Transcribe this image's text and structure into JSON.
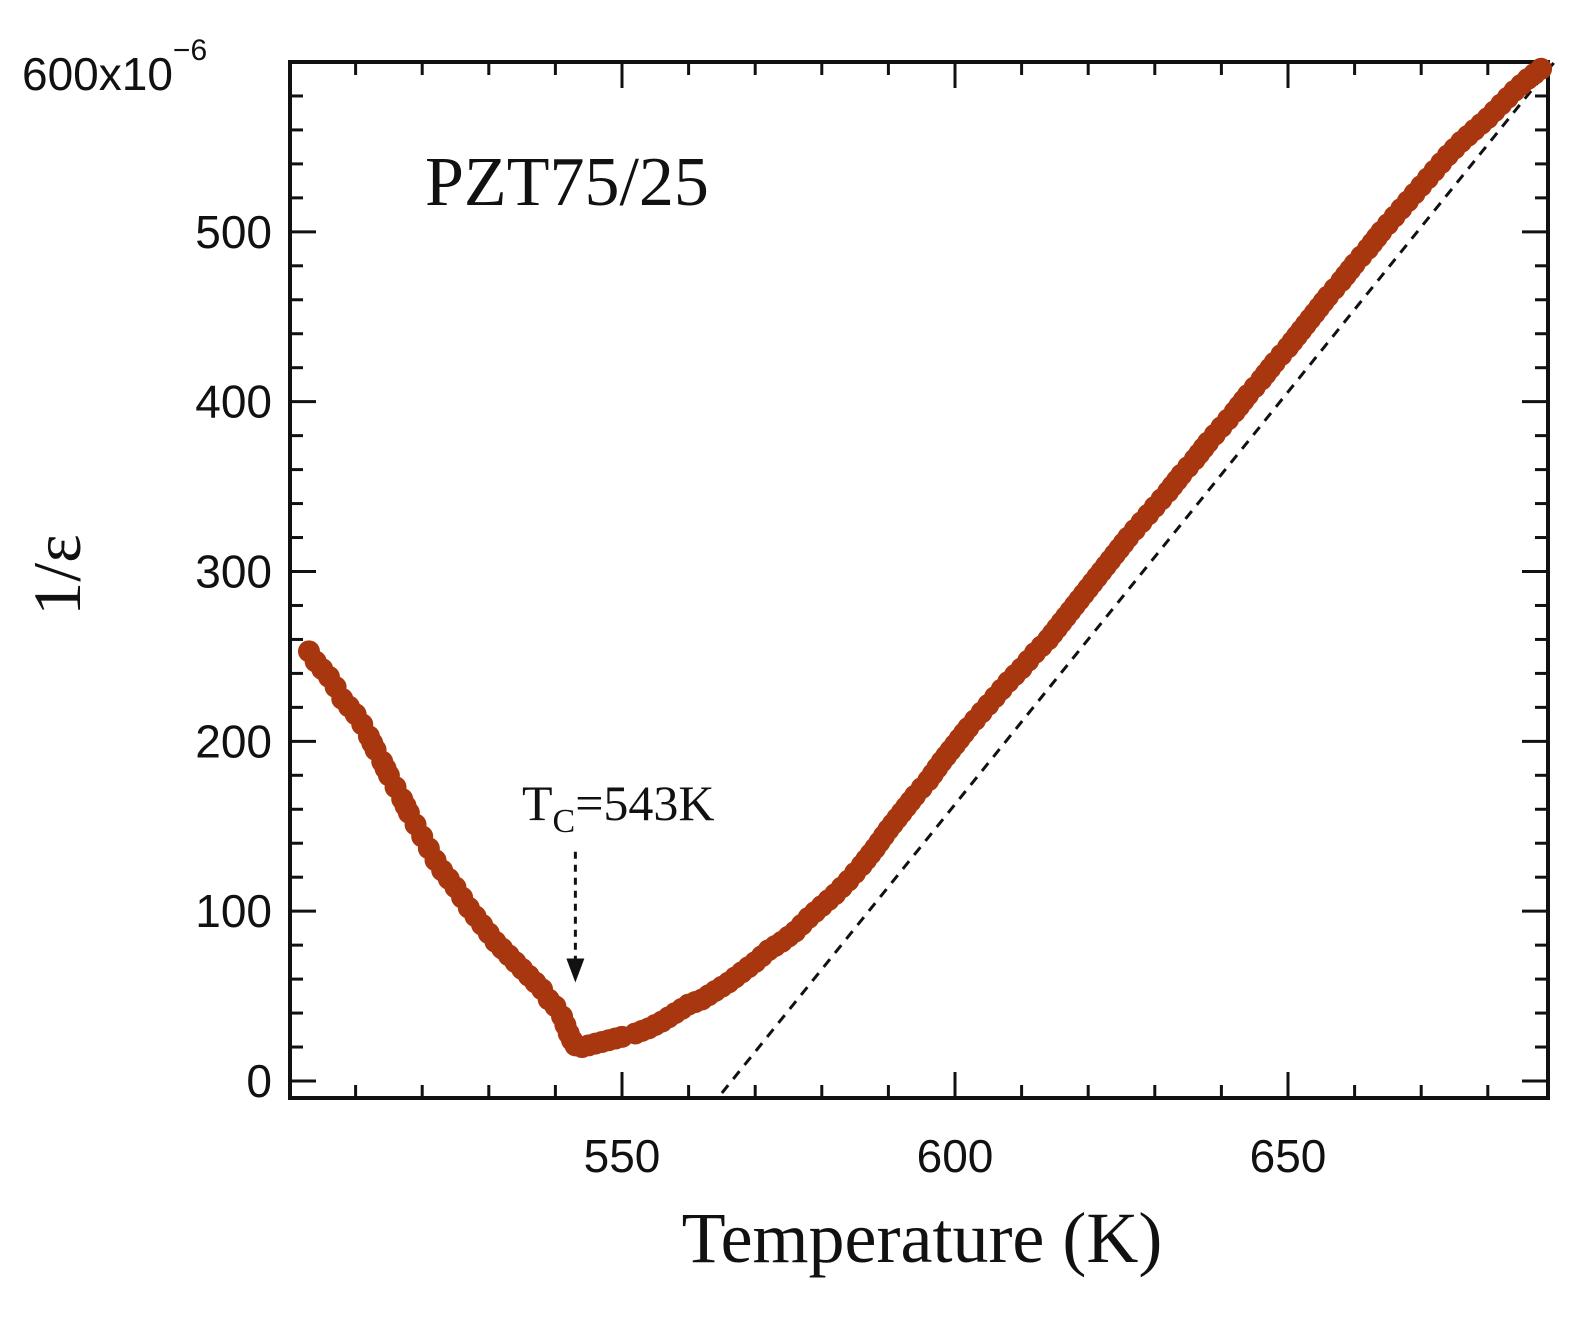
{
  "chart_data": {
    "type": "scatter",
    "title": "PZT75/25",
    "xlabel": "Temperature (K)",
    "ylabel": "1/ε",
    "y_scale_label": {
      "base": "600x10",
      "exponent": "−6"
    },
    "xlim": [
      500,
      690
    ],
    "ylim": [
      0,
      600
    ],
    "x_ticks": [
      550,
      600,
      650
    ],
    "y_ticks": [
      0,
      100,
      200,
      300,
      400,
      500
    ],
    "y_tick_labels": [
      "0",
      "100",
      "200",
      "300",
      "400",
      "500"
    ],
    "x_tick_labels": [
      "550",
      "600",
      "650"
    ],
    "marker_color": "#A8360F",
    "annotation": {
      "text_main": "T",
      "text_sub": "C",
      "text_rest": "=543K",
      "x": 543,
      "arrow_from_y": 135,
      "arrow_to_y": 58
    },
    "fit_line": {
      "style": "dashed",
      "points": [
        [
          565,
          0
        ],
        [
          690,
          600
        ]
      ]
    },
    "series": [
      {
        "name": "PZT75/25",
        "x": [
          503,
          504,
          506,
          507,
          508,
          510,
          511,
          512,
          513,
          514,
          515,
          516,
          517,
          518,
          519,
          520,
          521,
          522,
          523,
          524,
          525,
          526,
          527,
          528,
          529,
          530,
          531,
          532,
          533,
          534,
          535,
          536,
          537,
          538,
          539,
          540,
          541,
          541.5,
          542,
          542.5,
          543,
          544,
          545,
          546,
          547,
          548,
          549,
          550,
          552,
          554,
          556,
          558,
          560,
          562,
          564,
          566,
          568,
          570,
          572,
          574,
          576,
          578,
          580,
          582,
          584,
          586,
          588,
          590,
          592,
          594,
          596,
          598,
          600,
          602,
          604,
          606,
          608,
          610,
          612,
          614,
          616,
          618,
          620,
          622,
          624,
          626,
          628,
          630,
          632,
          634,
          636,
          638,
          640,
          642,
          644,
          646,
          648,
          650,
          652,
          654,
          656,
          658,
          660,
          662,
          664,
          666,
          668,
          670,
          672,
          674,
          676,
          678,
          680,
          682,
          684,
          686,
          688
        ],
        "y": [
          253,
          247,
          238,
          232,
          225,
          216,
          210,
          203,
          195,
          188,
          180,
          173,
          166,
          158,
          151,
          144,
          137,
          130,
          124,
          119,
          114,
          108,
          102,
          97,
          92,
          87,
          82,
          78,
          74,
          70,
          66,
          62,
          58,
          54,
          48,
          44,
          38,
          33,
          28,
          24,
          21,
          20,
          21,
          22,
          23,
          24,
          25,
          26,
          28,
          31,
          35,
          40,
          45,
          48,
          53,
          58,
          64,
          70,
          77,
          82,
          88,
          96,
          103,
          110,
          118,
          127,
          137,
          148,
          158,
          168,
          177,
          188,
          198,
          208,
          217,
          226,
          235,
          243,
          252,
          260,
          270,
          280,
          290,
          300,
          310,
          320,
          329,
          338,
          347,
          357,
          366,
          376,
          385,
          394,
          404,
          413,
          423,
          432,
          442,
          452,
          462,
          471,
          481,
          490,
          500,
          509,
          518,
          527,
          536,
          545,
          553,
          560,
          567,
          575,
          583,
          590,
          596
        ]
      }
    ]
  }
}
